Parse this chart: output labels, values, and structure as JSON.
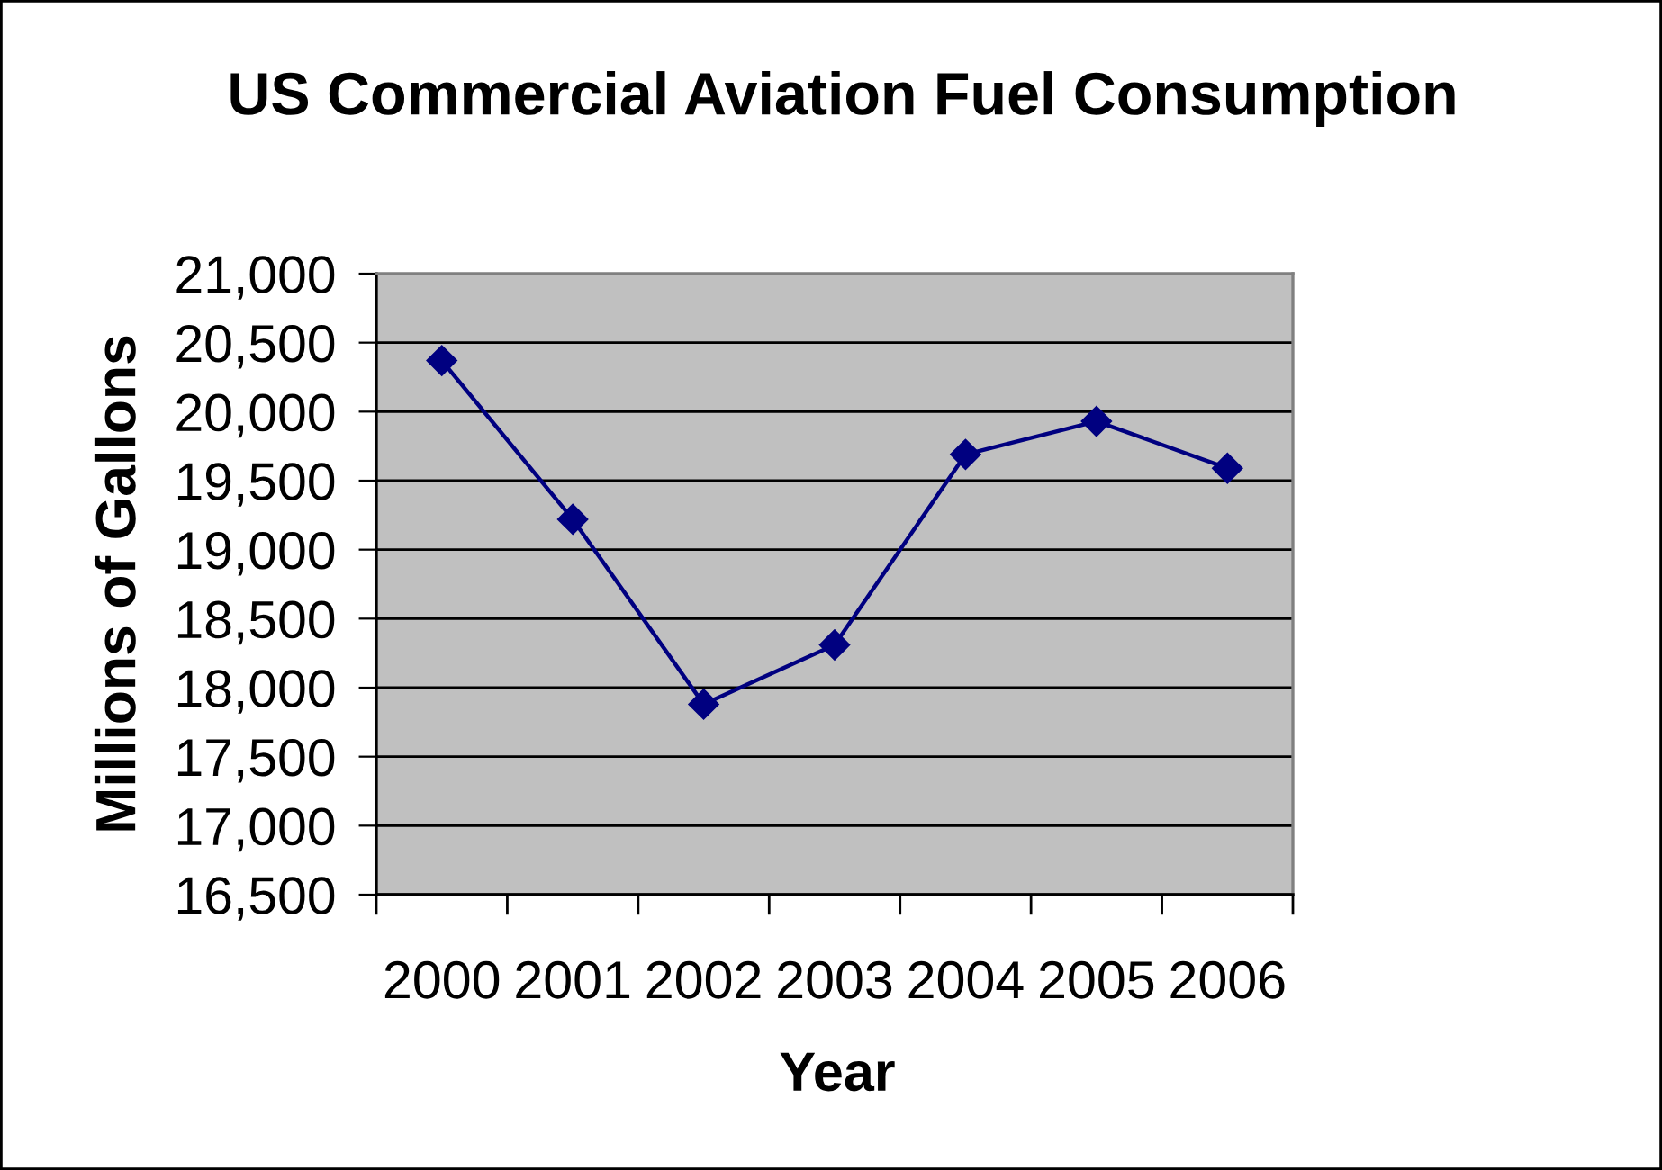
{
  "chart_data": {
    "type": "line",
    "title": "US Commercial Aviation Fuel Consumption",
    "xlabel": "Year",
    "ylabel": "Millions of Gallons",
    "categories": [
      "2000",
      "2001",
      "2002",
      "2003",
      "2004",
      "2005",
      "2006"
    ],
    "series": [
      {
        "color": "#000080",
        "values": [
          20370,
          19220,
          17880,
          18310,
          19690,
          19930,
          19590
        ]
      }
    ],
    "ylim": [
      16500,
      21000
    ],
    "yticks": [
      {
        "value": 16500,
        "label": "16,500"
      },
      {
        "value": 17000,
        "label": "17,000"
      },
      {
        "value": 17500,
        "label": "17,500"
      },
      {
        "value": 18000,
        "label": "18,000"
      },
      {
        "value": 18500,
        "label": "18,500"
      },
      {
        "value": 19000,
        "label": "19,000"
      },
      {
        "value": 19500,
        "label": "19,500"
      },
      {
        "value": 20000,
        "label": "20,000"
      },
      {
        "value": 20500,
        "label": "20,500"
      },
      {
        "value": 21000,
        "label": "21,000"
      }
    ],
    "grid": "y",
    "marker": "diamond",
    "line_style": "solid"
  }
}
